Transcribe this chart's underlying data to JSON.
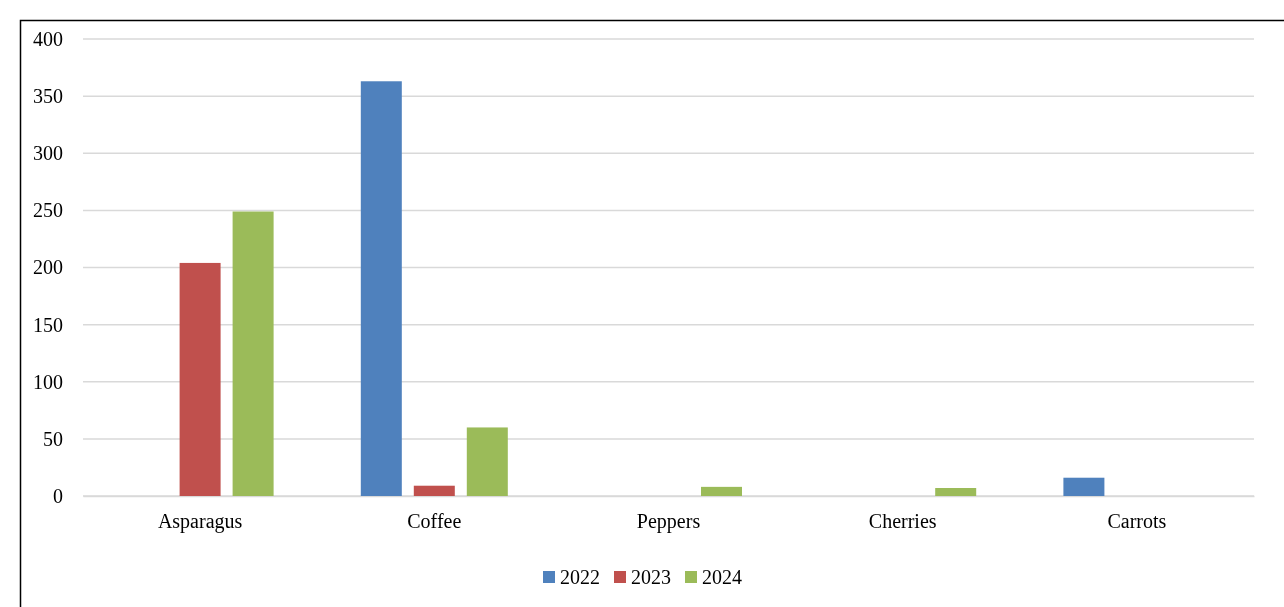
{
  "chart_data": {
    "type": "bar",
    "categories": [
      "Asparagus",
      "Coffee",
      "Peppers",
      "Cherries",
      "Carrots"
    ],
    "series": [
      {
        "name": "2022",
        "color": "#4f81bd",
        "values": [
          null,
          363,
          null,
          null,
          16
        ]
      },
      {
        "name": "2023",
        "color": "#c0504d",
        "values": [
          204,
          9,
          null,
          null,
          null
        ]
      },
      {
        "name": "2024",
        "color": "#9bbb59",
        "values": [
          249,
          60,
          8,
          7,
          null
        ]
      }
    ],
    "ylim": [
      0,
      400
    ],
    "yticks": [
      0,
      50,
      100,
      150,
      200,
      250,
      300,
      350,
      400
    ],
    "grid": "y",
    "legend": "bottom"
  }
}
